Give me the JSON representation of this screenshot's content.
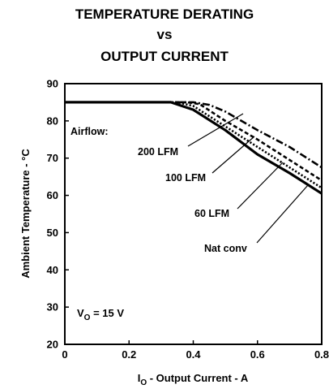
{
  "chart_data": {
    "type": "line",
    "title": [
      "TEMPERATURE DERATING",
      "vs",
      "OUTPUT CURRENT"
    ],
    "xlabel": {
      "main": "I",
      "sub": "O",
      "rest": " - Output Current - A"
    },
    "ylabel": "Ambient Temperature - °C",
    "xlim": [
      0,
      0.8
    ],
    "ylim": [
      20,
      90
    ],
    "xticks": [
      0,
      0.2,
      0.4,
      0.6,
      0.8
    ],
    "xtick_labels": [
      "0",
      "0.2",
      "0.4",
      "0.6",
      "0.8"
    ],
    "yticks": [
      20,
      30,
      40,
      50,
      60,
      70,
      80,
      90
    ],
    "ytick_labels": [
      "20",
      "30",
      "40",
      "50",
      "60",
      "70",
      "80",
      "90"
    ],
    "grid": false,
    "legend": "none",
    "series": [
      {
        "name": "Nat conv",
        "dash": "solid",
        "x": [
          0,
          0.33,
          0.4,
          0.5,
          0.6,
          0.7,
          0.8
        ],
        "y": [
          85,
          85,
          83,
          77.5,
          71,
          66,
          60.5
        ]
      },
      {
        "name": "60 LFM",
        "dash": "dotted",
        "x": [
          0,
          0.35,
          0.4,
          0.5,
          0.6,
          0.7,
          0.8
        ],
        "y": [
          85,
          85,
          84,
          78.5,
          73,
          67.5,
          62
        ]
      },
      {
        "name": "100 LFM",
        "dash": "short-dash",
        "x": [
          0,
          0.38,
          0.42,
          0.5,
          0.6,
          0.7,
          0.8
        ],
        "y": [
          85,
          85,
          84.5,
          80,
          75,
          69.5,
          64
        ]
      },
      {
        "name": "200 LFM",
        "dash": "dash-dot",
        "x": [
          0,
          0.4,
          0.45,
          0.5,
          0.6,
          0.7,
          0.8
        ],
        "y": [
          85,
          85,
          84.3,
          82.5,
          77.5,
          73,
          67.5
        ]
      }
    ],
    "annotations": {
      "airflow": "Airflow:",
      "lfm200": "200 LFM",
      "lfm100": "100 LFM",
      "lfm60": "60 LFM",
      "natconv": "Nat conv",
      "vo": {
        "main": "V",
        "sub": "O",
        "rest": " = 15 V"
      }
    }
  }
}
